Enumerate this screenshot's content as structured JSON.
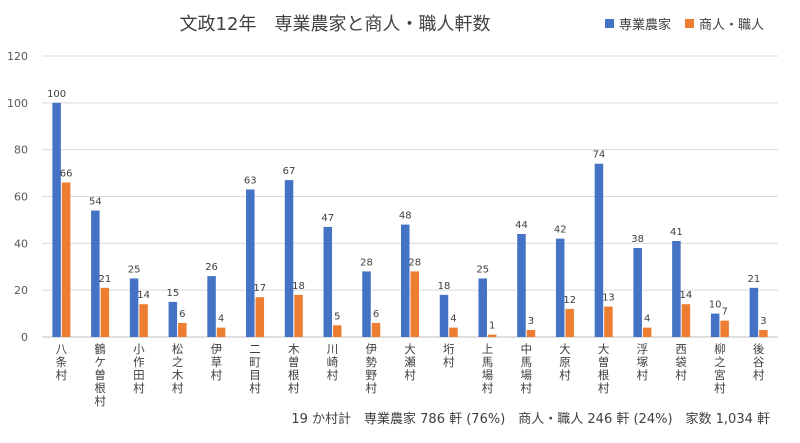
{
  "chart_data": {
    "type": "bar",
    "title": "文政12年　専業農家と商人・職人軒数",
    "xlabel": "",
    "ylabel": "",
    "ylim": [
      0,
      120
    ],
    "yticks": [
      0,
      20,
      40,
      60,
      80,
      100,
      120
    ],
    "grid": true,
    "legend_position": "top-right",
    "categories": [
      "八条村",
      "鶴ケ曽根村",
      "小作田村",
      "松之木村",
      "伊草村",
      "二町目村",
      "木曽根村",
      "川崎村",
      "伊勢野村",
      "大瀬村",
      "垳村",
      "上馬場村",
      "中馬場村",
      "大原村",
      "大曽根村",
      "浮塚村",
      "西袋村",
      "柳之宮村",
      "後谷村"
    ],
    "series": [
      {
        "name": "専業農家",
        "color": "#4472C4",
        "values": [
          100,
          54,
          25,
          15,
          26,
          63,
          67,
          47,
          28,
          48,
          18,
          25,
          44,
          42,
          74,
          38,
          41,
          10,
          21
        ]
      },
      {
        "name": "商人・職人",
        "color": "#ED7D31",
        "values": [
          66,
          21,
          14,
          6,
          4,
          17,
          18,
          5,
          6,
          28,
          4,
          1,
          3,
          12,
          13,
          4,
          14,
          7,
          3
        ]
      }
    ],
    "footnote": "19 か村計　専業農家 786 軒 (76%)　商人・職人 246 軒 (24%)　家数 1,034 軒"
  }
}
